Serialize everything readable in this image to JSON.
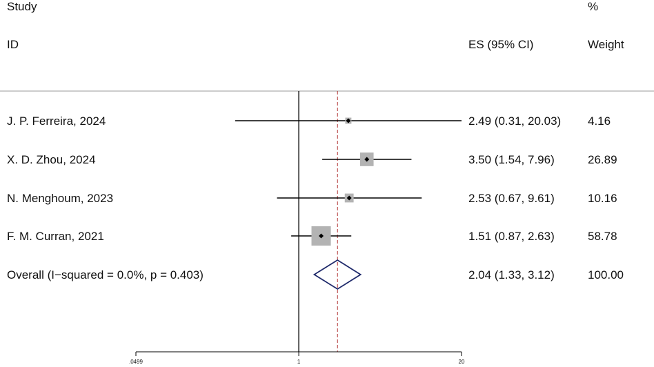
{
  "header": {
    "study": "Study",
    "id": "ID",
    "es": "ES (95% CI)",
    "pct": "%",
    "weight": "Weight"
  },
  "rows": [
    {
      "label": "J. P. Ferreira, 2024",
      "es_ci": "2.49 (0.31, 20.03)",
      "weight": "4.16"
    },
    {
      "label": "X. D. Zhou, 2024",
      "es_ci": "3.50 (1.54, 7.96)",
      "weight": "26.89"
    },
    {
      "label": "N. Menghoum, 2023",
      "es_ci": "2.53 (0.67, 9.61)",
      "weight": "10.16"
    },
    {
      "label": "F. M. Curran, 2021",
      "es_ci": "1.51 (0.87, 2.63)",
      "weight": "58.78"
    }
  ],
  "overall": {
    "label": "Overall  (I−squared = 0.0%, p = 0.403)",
    "es_ci": "2.04 (1.33, 3.12)",
    "weight": "100.00"
  },
  "axis": {
    "ticks": [
      ".0499",
      "1",
      "20"
    ]
  },
  "chart_data": {
    "type": "forest",
    "x_scale": "log",
    "xlim": [
      0.0499,
      20
    ],
    "null_line": 1,
    "overall_line": 2.04,
    "studies": [
      {
        "label": "J. P. Ferreira, 2024",
        "es": 2.49,
        "lo": 0.31,
        "hi": 20.03,
        "weight": 4.16
      },
      {
        "label": "X. D. Zhou, 2024",
        "es": 3.5,
        "lo": 1.54,
        "hi": 7.96,
        "weight": 26.89
      },
      {
        "label": "N. Menghoum, 2023",
        "es": 2.53,
        "lo": 0.67,
        "hi": 9.61,
        "weight": 10.16
      },
      {
        "label": "F. M. Curran, 2021",
        "es": 1.51,
        "lo": 0.87,
        "hi": 2.63,
        "weight": 58.78
      }
    ],
    "overall": {
      "es": 2.04,
      "lo": 1.33,
      "hi": 3.12,
      "weight": 100.0
    },
    "colors": {
      "box": "#b3b3b3",
      "diamond": "#1f2a6b",
      "overall_line": "#b03030",
      "line": "#000000"
    }
  }
}
